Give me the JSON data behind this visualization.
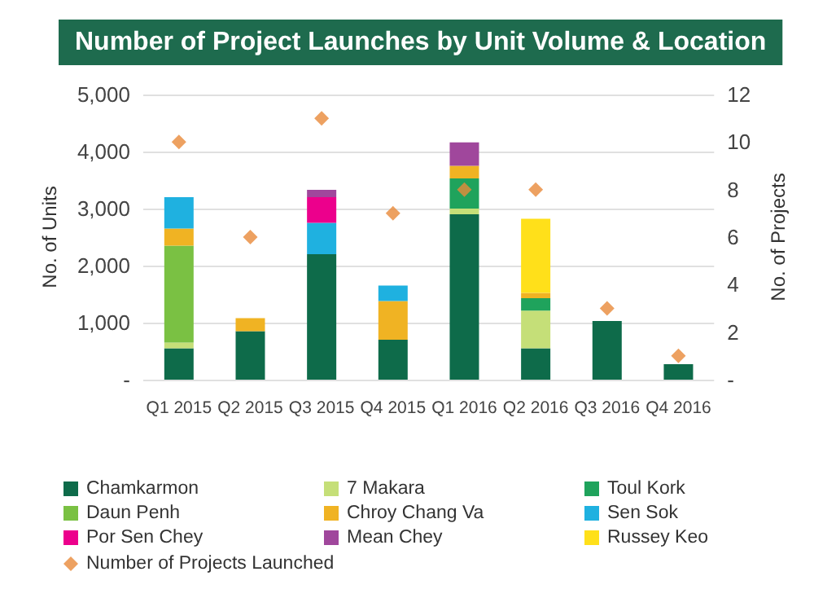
{
  "chart_data": {
    "type": "bar",
    "title": "Number of Project Launches by Unit Volume & Location",
    "ylabel": "No. of Units",
    "y2label": "No. of Projects",
    "stacked": true,
    "categories": [
      "Q1 2015",
      "Q2 2015",
      "Q3 2015",
      "Q4 2015",
      "Q1 2016",
      "Q2 2016",
      "Q3 2016",
      "Q4 2016"
    ],
    "series": [
      {
        "name": "Chamkarmon",
        "color": "#0e6b4a",
        "values": [
          550,
          850,
          2200,
          700,
          2900,
          550,
          1030,
          270
        ]
      },
      {
        "name": "7 Makara",
        "color": "#c5df78",
        "values": [
          100,
          null,
          null,
          null,
          100,
          660,
          null,
          null
        ]
      },
      {
        "name": "Toul Kork",
        "color": "#1fa35c",
        "values": [
          null,
          null,
          null,
          null,
          530,
          220,
          null,
          null
        ]
      },
      {
        "name": "Daun Penh",
        "color": "#7ac143",
        "values": [
          1700,
          null,
          null,
          null,
          null,
          null,
          null,
          null
        ]
      },
      {
        "name": "Chroy Chang Va",
        "color": "#f0b323",
        "values": [
          300,
          230,
          null,
          680,
          220,
          90,
          null,
          null
        ]
      },
      {
        "name": "Sen Sok",
        "color": "#1fb1e0",
        "values": [
          550,
          null,
          550,
          270,
          null,
          null,
          null,
          null
        ]
      },
      {
        "name": "Por Sen Chey",
        "color": "#ec008c",
        "values": [
          null,
          null,
          450,
          null,
          null,
          null,
          null,
          null
        ]
      },
      {
        "name": "Mean Chey",
        "color": "#a0479c",
        "values": [
          null,
          null,
          130,
          null,
          410,
          null,
          null,
          null
        ]
      },
      {
        "name": "Russey Keo",
        "color": "#ffe01a",
        "values": [
          null,
          null,
          null,
          null,
          null,
          1300,
          null,
          null
        ]
      },
      {
        "name": "Number of Projects Launched",
        "type": "scatter",
        "axis": "y2",
        "marker": "diamond",
        "color": "#e8893a",
        "values": [
          10,
          6,
          11,
          7,
          8,
          8,
          3,
          1
        ]
      }
    ],
    "ylim": [
      0,
      5000
    ],
    "yticks": [
      {
        "value": 0,
        "label": "-"
      },
      {
        "value": 1000,
        "label": "1,000"
      },
      {
        "value": 2000,
        "label": "2,000"
      },
      {
        "value": 3000,
        "label": "3,000"
      },
      {
        "value": 4000,
        "label": "4,000"
      },
      {
        "value": 5000,
        "label": "5,000"
      }
    ],
    "y2lim": [
      0,
      12
    ],
    "y2ticks": [
      {
        "value": 0,
        "label": "-"
      },
      2,
      4,
      6,
      8,
      10,
      12
    ],
    "grid": "y",
    "legend": "bottom"
  }
}
